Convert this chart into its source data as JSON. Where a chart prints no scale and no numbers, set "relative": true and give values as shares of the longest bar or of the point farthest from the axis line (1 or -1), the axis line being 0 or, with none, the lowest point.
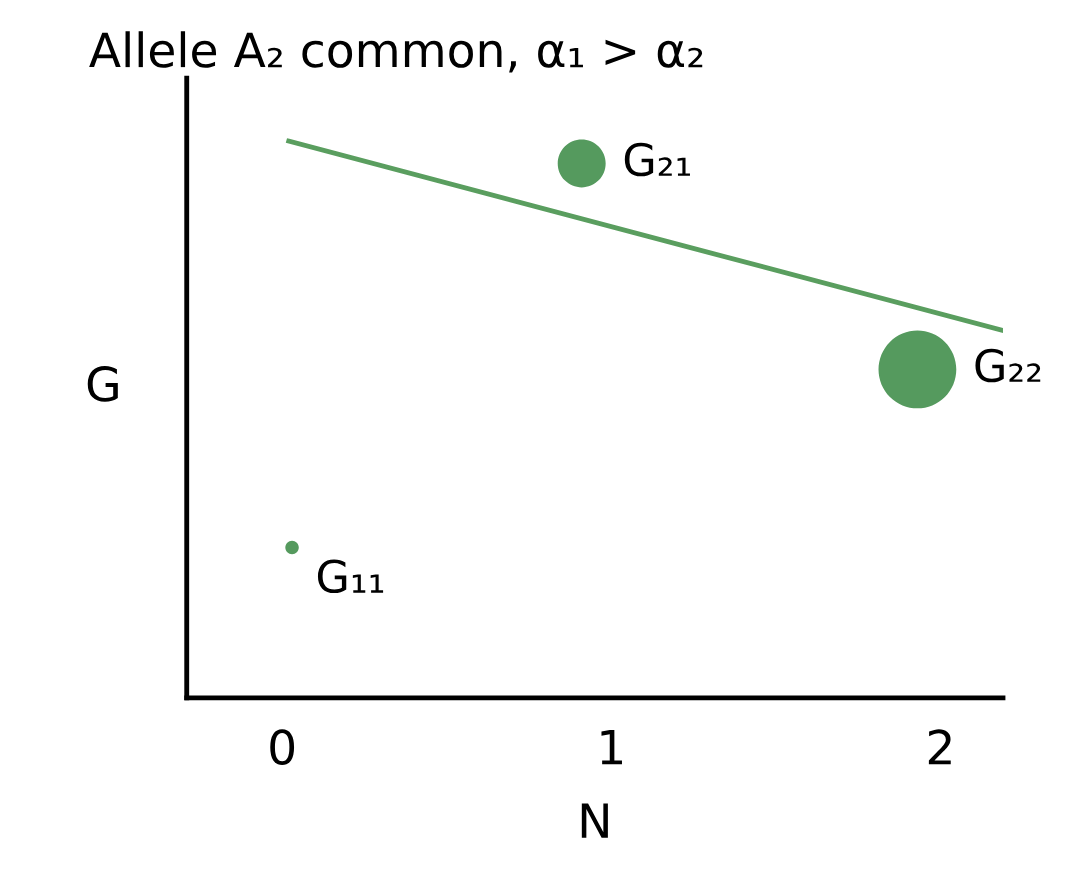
{
  "chart_data": {
    "type": "bubble",
    "title": "Allele A₂ common, α₁ > α₂",
    "xlabel": "N",
    "ylabel": "G",
    "relative": true,
    "xlim": [
      -0.29,
      2.19
    ],
    "xticks": [
      0,
      1,
      2
    ],
    "grid": false,
    "tick_labels": "x",
    "series": [
      {
        "color": "#559a5e",
        "x": [
          0.03,
          0.91,
          1.93
        ],
        "values": [
          0.27,
          0.96,
          0.59
        ],
        "sizes": [
          0.03,
          0.38,
          1
        ]
      },
      {
        "type": "line",
        "color": "#5a9e5f",
        "x": [
          0.02,
          2.19
        ],
        "values": [
          1.0,
          0.66
        ]
      }
    ],
    "annotations": [
      {
        "text": "G₁₁",
        "x": 0.03,
        "y": 0.27
      },
      {
        "text": "G₂₁",
        "x": 0.91,
        "y": 0.96
      },
      {
        "text": "G₂₂",
        "x": 1.93,
        "y": 0.59
      }
    ]
  }
}
